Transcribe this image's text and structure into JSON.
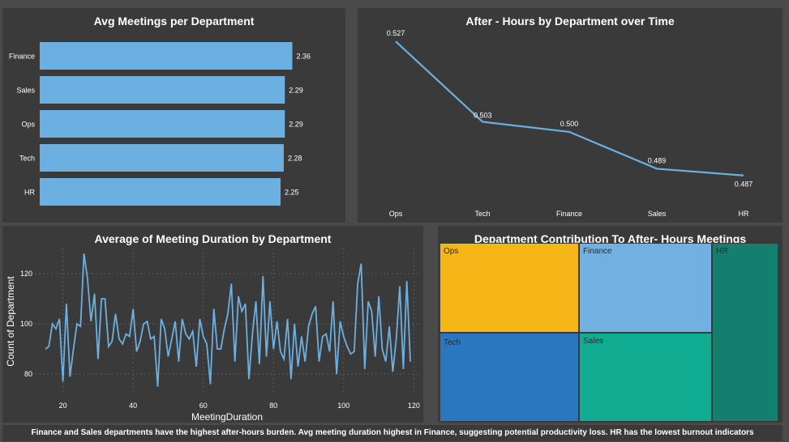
{
  "charts": {
    "bar": {
      "title": "Avg Meetings per Department",
      "chart_data": {
        "type": "bar",
        "orientation": "horizontal",
        "categories": [
          "Finance",
          "Sales",
          "Ops",
          "Tech",
          "HR"
        ],
        "values": [
          2.36,
          2.29,
          2.29,
          2.28,
          2.25
        ],
        "value_labels": [
          "2.36",
          "2.29",
          "2.29",
          "2.28",
          "2.25"
        ],
        "xlim": [
          0,
          2.5
        ],
        "color": "#6cb0e2"
      }
    },
    "line": {
      "title": "After - Hours by Department over Time",
      "chart_data": {
        "type": "line",
        "categories": [
          "Ops",
          "Tech",
          "Finance",
          "Sales",
          "HR"
        ],
        "values": [
          0.527,
          0.503,
          0.5,
          0.489,
          0.487
        ],
        "value_labels": [
          "0.527",
          "0.503",
          "0.500",
          "0.489",
          "0.487"
        ],
        "ylim": [
          0.485,
          0.528
        ],
        "color": "#6cb0e2"
      }
    },
    "scatter": {
      "title": "Average of Meeting Duration by Department",
      "chart_data": {
        "type": "line",
        "xlabel": "MeetingDuration",
        "ylabel": "Count of Department",
        "xlim": [
          12,
          122
        ],
        "ylim": [
          72,
          130
        ],
        "xticks": [
          20,
          40,
          60,
          80,
          100,
          120
        ],
        "yticks": [
          80,
          100,
          120
        ],
        "x": [
          15,
          16,
          17,
          18,
          19,
          20,
          21,
          22,
          23,
          24,
          25,
          26,
          27,
          28,
          29,
          30,
          31,
          32,
          33,
          34,
          35,
          36,
          37,
          38,
          39,
          40,
          41,
          42,
          43,
          44,
          45,
          46,
          47,
          48,
          49,
          50,
          51,
          52,
          53,
          54,
          55,
          56,
          57,
          58,
          59,
          60,
          61,
          62,
          63,
          64,
          65,
          66,
          67,
          68,
          69,
          70,
          71,
          72,
          73,
          74,
          75,
          76,
          77,
          78,
          79,
          80,
          81,
          82,
          83,
          84,
          85,
          86,
          87,
          88,
          89,
          90,
          91,
          92,
          93,
          94,
          95,
          96,
          97,
          98,
          99,
          100,
          101,
          102,
          103,
          104,
          105,
          106,
          107,
          108,
          109,
          110,
          111,
          112,
          113,
          114,
          115,
          116,
          117,
          118,
          119
        ],
        "values": [
          90,
          91,
          100,
          98,
          102,
          77,
          108,
          79,
          90,
          100,
          99,
          128,
          118,
          101,
          112,
          86,
          110,
          110,
          91,
          93,
          104,
          94,
          92,
          96,
          95,
          106,
          89,
          93,
          100,
          101,
          94,
          95,
          75,
          102,
          98,
          87,
          94,
          101,
          85,
          102,
          96,
          94,
          97,
          83,
          102,
          95,
          92,
          76,
          106,
          90,
          90,
          98,
          104,
          116,
          85,
          111,
          105,
          108,
          78,
          96,
          109,
          84,
          119,
          87,
          109,
          90,
          101,
          89,
          86,
          102,
          78,
          100,
          83,
          95,
          85,
          99,
          104,
          107,
          85,
          95,
          96,
          89,
          109,
          80,
          101,
          95,
          91,
          88,
          89,
          116,
          124,
          82,
          109,
          105,
          87,
          111,
          90,
          85,
          99,
          81,
          94,
          115,
          82,
          117,
          85
        ],
        "color": "#6cb0e2"
      }
    },
    "treemap": {
      "title": "Department Contribution To After- Hours Meetings",
      "chart_data": {
        "type": "treemap",
        "categories": [
          "Ops",
          "Finance",
          "HR",
          "Tech",
          "Sales"
        ],
        "colors": [
          "#f6b617",
          "#73b0e2",
          "#127f6f",
          "#2b77bf",
          "#10ad93"
        ]
      }
    }
  },
  "footer_text": "Finance and Sales departments have the highest after-hours burden. Avg meeting duration highest in Finance, suggesting potential productivity loss. HR has the lowest burnout indicators"
}
